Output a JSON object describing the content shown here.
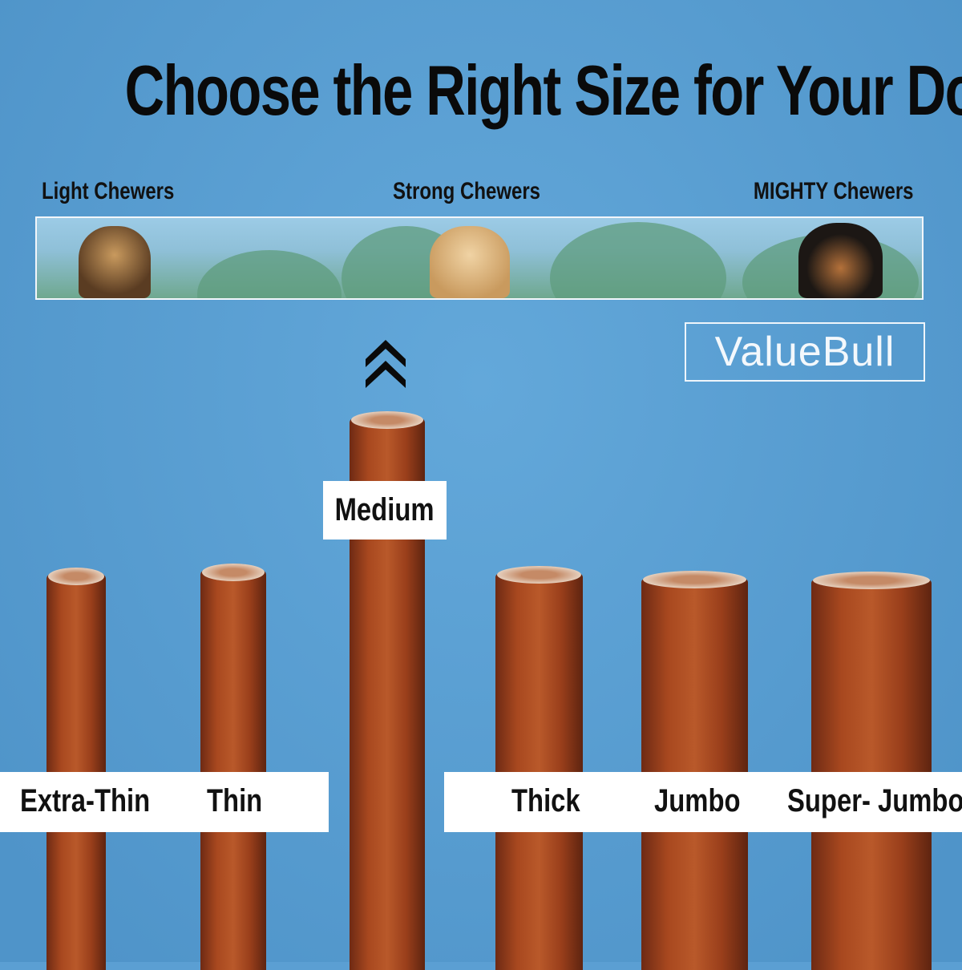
{
  "title": "Choose the Right Size for Your Dog",
  "chewer_levels": [
    "Light Chewers",
    "Strong Chewers",
    "MIGHTY Chewers"
  ],
  "logo": "ValueBull",
  "sizes": [
    "Extra-Thin",
    "Thin",
    "Medium",
    "Thick",
    "Jumbo",
    "Super- Jumbo"
  ],
  "highlighted_size": "Medium",
  "icons": {
    "recommended": "double-chevron-up-icon"
  },
  "colors": {
    "background": "#5b9fd3",
    "label_bg": "#ffffff",
    "text": "#111111"
  }
}
